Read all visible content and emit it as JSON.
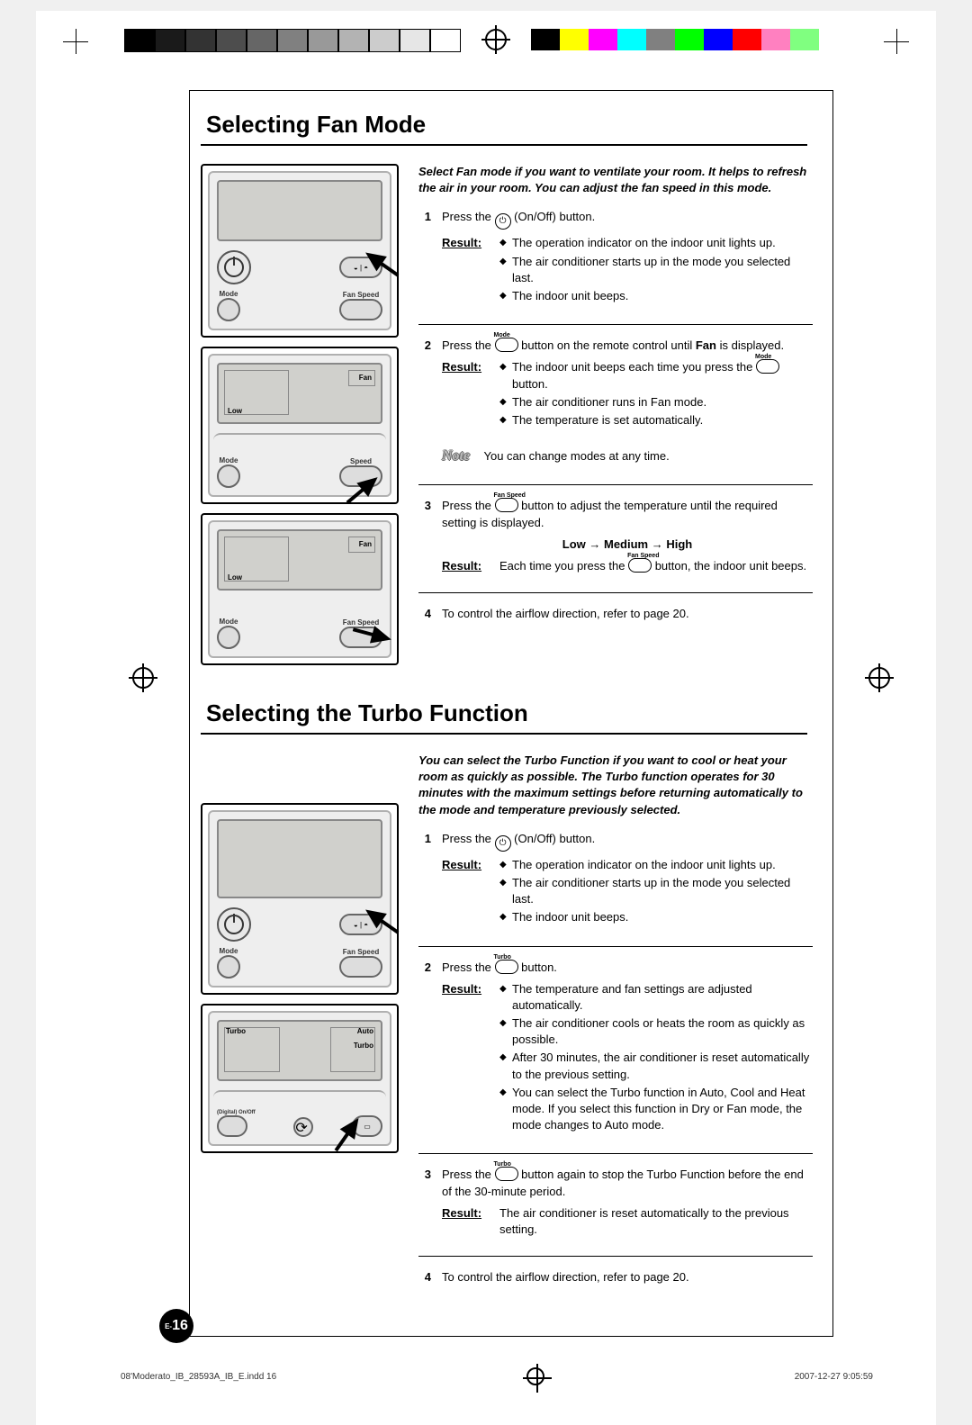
{
  "colorbars": {
    "left": [
      "#000000",
      "#1a1a1a",
      "#333333",
      "#4d4d4d",
      "#666666",
      "#808080",
      "#999999",
      "#b3b3b3",
      "#cccccc",
      "#e6e6e6",
      "#ffffff"
    ],
    "right": [
      "#000000",
      "#ffff00",
      "#ff00ff",
      "#00ffff",
      "#808080",
      "#00ff00",
      "#0000ff",
      "#ff0000",
      "#ff80c0",
      "#80ff80",
      "#ffffff"
    ]
  },
  "section1": {
    "title": "Selecting Fan Mode",
    "intro": "Select Fan mode if you want to ventilate your room. It helps to refresh the air in your room. You can adjust the fan speed in this mode.",
    "step1": {
      "num": "1",
      "text_a": "Press the ",
      "text_b": " (On/Off) button.",
      "result_label": "Result:",
      "bullets": [
        "The operation indicator on the indoor unit lights up.",
        "The air conditioner starts up in the mode you selected last.",
        "The indoor unit beeps."
      ]
    },
    "step2": {
      "num": "2",
      "text_a": "Press the ",
      "btn_label": "Mode",
      "text_b": " button on the remote control until ",
      "text_bold": "Fan",
      "text_c": " is displayed.",
      "result_label": "Result:",
      "bullets_a": "The indoor unit beeps each time you press the ",
      "bullets_a_btn": "Mode",
      "bullets_a2": " button.",
      "bullets_b": "The air conditioner runs in Fan mode.",
      "bullets_c": "The temperature is set automatically.",
      "note_label": "Note",
      "note_text": "You can change modes at any time."
    },
    "step3": {
      "num": "3",
      "text_a": "Press the ",
      "btn_label": "Fan Speed",
      "text_b": " button to adjust the temperature until the required setting is displayed.",
      "sequence": "Low → Medium → High",
      "result_label": "Result:",
      "result_a": "Each time you press the ",
      "result_btn": "Fan Speed",
      "result_b": " button, the indoor unit beeps."
    },
    "step4": {
      "num": "4",
      "text": "To control the airflow direction, refer to page 20."
    },
    "panel1": {
      "labels": {
        "mode": "Mode",
        "fan": "Fan Speed"
      }
    },
    "panel2": {
      "lcd": {
        "fan": "Fan",
        "low": "Low"
      },
      "labels": {
        "mode": "Mode",
        "speed": "Speed"
      }
    },
    "panel3": {
      "lcd": {
        "fan": "Fan",
        "low": "Low"
      },
      "labels": {
        "mode": "Mode",
        "fan": "Fan Speed"
      }
    }
  },
  "section2": {
    "title": "Selecting the Turbo Function",
    "intro": "You can select the Turbo Function if you want to cool or heat your room as quickly as possible. The Turbo function operates for 30 minutes with the maximum settings before returning automatically to the mode and temperature previously selected.",
    "step1": {
      "num": "1",
      "text_a": "Press the ",
      "text_b": " (On/Off) button.",
      "result_label": "Result:",
      "bullets": [
        "The operation indicator on the indoor unit lights up.",
        "The air conditioner starts up in the mode you selected last.",
        "The indoor unit beeps."
      ]
    },
    "step2": {
      "num": "2",
      "text_a": "Press the ",
      "btn_label": "Turbo",
      "text_b": " button.",
      "result_label": "Result:",
      "bullets": [
        "The temperature and fan settings are adjusted automatically.",
        "The air conditioner cools or heats the room as quickly as possible.",
        "After 30 minutes, the air conditioner is reset automatically to the previous setting.",
        "You can select the Turbo function in Auto, Cool and Heat mode. If you select this function in Dry or Fan mode, the mode changes to Auto mode."
      ]
    },
    "step3": {
      "num": "3",
      "text_a": "Press the ",
      "btn_label": "Turbo",
      "text_b": " button again to stop the Turbo Function before the end of the 30-minute period.",
      "result_label": "Result:",
      "result_text": "The air conditioner is reset automatically to the previous setting."
    },
    "step4": {
      "num": "4",
      "text": "To control the airflow direction, refer to page 20."
    },
    "panel1": {
      "labels": {
        "mode": "Mode",
        "fan": "Fan Speed"
      }
    },
    "panel2": {
      "lcd": {
        "turbo": "Turbo",
        "auto": "Auto",
        "turbo2": "Turbo"
      },
      "labels": {
        "digi": "(Digital) On/Off"
      }
    }
  },
  "pagenum": {
    "prefix": "E-",
    "num": "16"
  },
  "footer": {
    "file": "08'Moderato_IB_28593A_IB_E.indd   16",
    "date": "2007-12-27   9:05:59"
  }
}
